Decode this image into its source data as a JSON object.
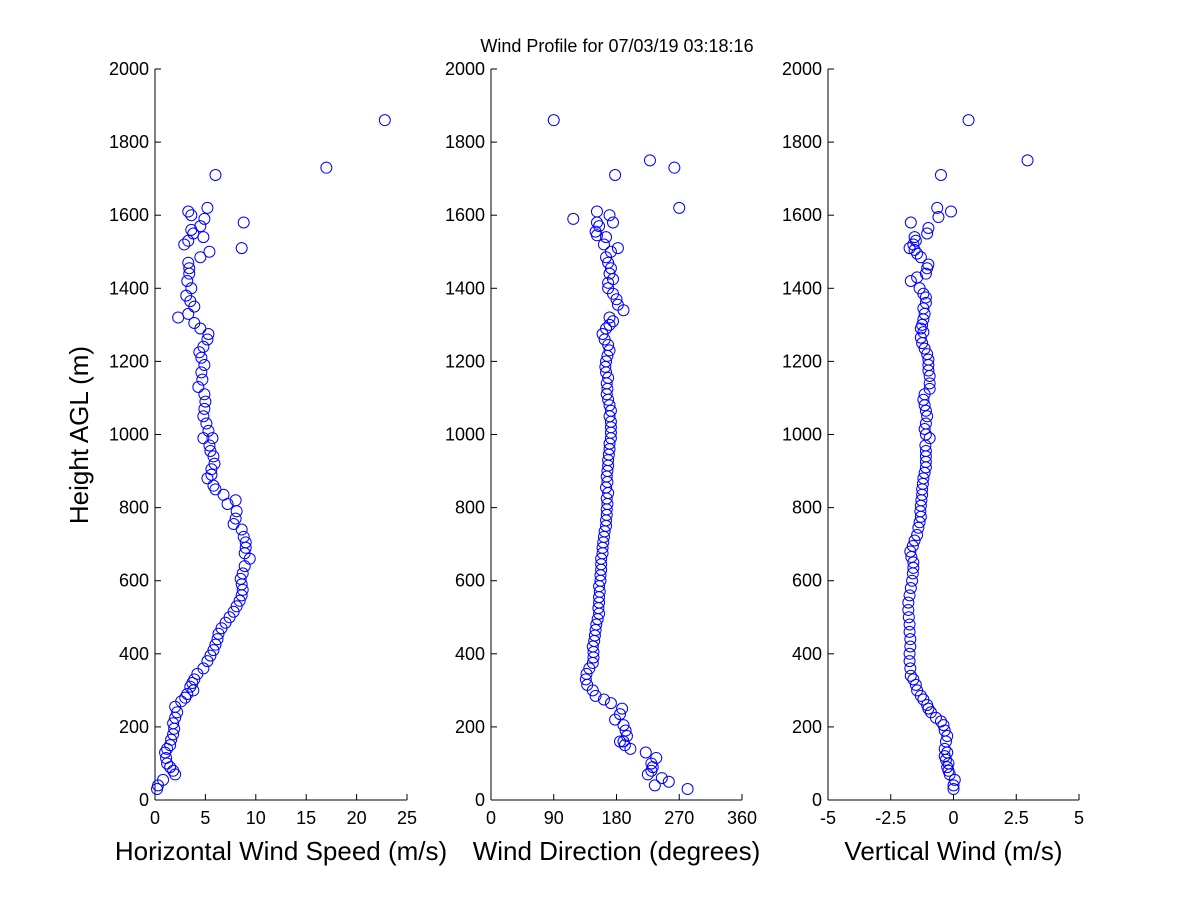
{
  "title": "Wind Profile for  07/03/19 03:18:16",
  "ylabel": "Height AGL (m)",
  "colors": {
    "marker": "#0000ff",
    "axis": "#000000",
    "background": "#ffffff"
  },
  "yticks": [
    "0",
    "200",
    "400",
    "600",
    "800",
    "1000",
    "1200",
    "1400",
    "1600",
    "1800",
    "2000"
  ],
  "chart_data": [
    {
      "type": "scatter",
      "xlabel": "Horizontal Wind Speed (m/s)",
      "ylabel": "Height AGL (m)",
      "xlim": [
        0,
        25
      ],
      "ylim": [
        0,
        2000
      ],
      "xticks": [
        "0",
        "5",
        "10",
        "15",
        "20",
        "25"
      ],
      "grid": false,
      "points": [
        [
          0.2,
          30
        ],
        [
          0.3,
          40
        ],
        [
          0.8,
          55
        ],
        [
          2.0,
          70
        ],
        [
          1.8,
          80
        ],
        [
          1.5,
          90
        ],
        [
          1.2,
          100
        ],
        [
          1.1,
          115
        ],
        [
          1.0,
          130
        ],
        [
          1.2,
          140
        ],
        [
          1.5,
          150
        ],
        [
          1.6,
          165
        ],
        [
          1.8,
          180
        ],
        [
          1.9,
          195
        ],
        [
          1.8,
          210
        ],
        [
          2.0,
          225
        ],
        [
          2.2,
          240
        ],
        [
          2.0,
          255
        ],
        [
          2.6,
          270
        ],
        [
          3.0,
          280
        ],
        [
          3.2,
          290
        ],
        [
          3.8,
          300
        ],
        [
          3.5,
          310
        ],
        [
          3.7,
          320
        ],
        [
          3.9,
          330
        ],
        [
          4.2,
          345
        ],
        [
          4.8,
          360
        ],
        [
          5.2,
          380
        ],
        [
          5.5,
          395
        ],
        [
          5.8,
          410
        ],
        [
          6.0,
          425
        ],
        [
          6.2,
          440
        ],
        [
          6.3,
          455
        ],
        [
          6.6,
          470
        ],
        [
          7.0,
          485
        ],
        [
          7.4,
          500
        ],
        [
          7.8,
          515
        ],
        [
          8.1,
          530
        ],
        [
          8.4,
          545
        ],
        [
          8.6,
          560
        ],
        [
          8.7,
          575
        ],
        [
          8.6,
          590
        ],
        [
          8.5,
          605
        ],
        [
          8.7,
          620
        ],
        [
          8.9,
          640
        ],
        [
          9.4,
          660
        ],
        [
          8.9,
          675
        ],
        [
          9.0,
          690
        ],
        [
          9.0,
          705
        ],
        [
          8.8,
          720
        ],
        [
          8.6,
          740
        ],
        [
          7.8,
          755
        ],
        [
          8.0,
          770
        ],
        [
          8.1,
          790
        ],
        [
          7.2,
          810
        ],
        [
          8.0,
          820
        ],
        [
          6.8,
          835
        ],
        [
          6.0,
          850
        ],
        [
          5.8,
          860
        ],
        [
          5.2,
          880
        ],
        [
          5.6,
          890
        ],
        [
          5.6,
          905
        ],
        [
          5.9,
          920
        ],
        [
          5.8,
          940
        ],
        [
          5.5,
          955
        ],
        [
          5.4,
          970
        ],
        [
          5.7,
          990
        ],
        [
          4.8,
          990
        ],
        [
          5.3,
          1010
        ],
        [
          5.1,
          1030
        ],
        [
          4.8,
          1050
        ],
        [
          4.9,
          1070
        ],
        [
          5.0,
          1090
        ],
        [
          4.9,
          1110
        ],
        [
          4.3,
          1130
        ],
        [
          4.7,
          1150
        ],
        [
          4.6,
          1170
        ],
        [
          4.9,
          1190
        ],
        [
          4.6,
          1210
        ],
        [
          4.4,
          1225
        ],
        [
          4.8,
          1240
        ],
        [
          5.2,
          1260
        ],
        [
          5.3,
          1275
        ],
        [
          4.5,
          1290
        ],
        [
          3.9,
          1305
        ],
        [
          2.3,
          1320
        ],
        [
          3.3,
          1330
        ],
        [
          3.9,
          1350
        ],
        [
          3.5,
          1365
        ],
        [
          3.1,
          1380
        ],
        [
          3.6,
          1400
        ],
        [
          3.2,
          1420
        ],
        [
          3.4,
          1440
        ],
        [
          3.4,
          1455
        ],
        [
          3.3,
          1470
        ],
        [
          4.5,
          1485
        ],
        [
          5.4,
          1500
        ],
        [
          8.6,
          1510
        ],
        [
          2.9,
          1520
        ],
        [
          3.3,
          1530
        ],
        [
          4.8,
          1540
        ],
        [
          3.8,
          1550
        ],
        [
          3.6,
          1560
        ],
        [
          4.5,
          1570
        ],
        [
          8.8,
          1580
        ],
        [
          4.9,
          1590
        ],
        [
          3.6,
          1600
        ],
        [
          3.3,
          1610
        ],
        [
          5.2,
          1620
        ],
        [
          6.0,
          1710
        ],
        [
          17.0,
          1730
        ],
        [
          22.8,
          1860
        ]
      ]
    },
    {
      "type": "scatter",
      "xlabel": "Wind Direction (degrees)",
      "ylabel": "",
      "xlim": [
        0,
        360
      ],
      "ylim": [
        0,
        2000
      ],
      "xticks": [
        "0",
        "90",
        "180",
        "270",
        "360"
      ],
      "grid": false,
      "points": [
        [
          282,
          30
        ],
        [
          235,
          40
        ],
        [
          255,
          50
        ],
        [
          245,
          60
        ],
        [
          225,
          70
        ],
        [
          230,
          80
        ],
        [
          232,
          90
        ],
        [
          230,
          100
        ],
        [
          237,
          115
        ],
        [
          222,
          130
        ],
        [
          200,
          140
        ],
        [
          192,
          150
        ],
        [
          190,
          160
        ],
        [
          185,
          160
        ],
        [
          195,
          175
        ],
        [
          193,
          190
        ],
        [
          190,
          205
        ],
        [
          178,
          220
        ],
        [
          185,
          235
        ],
        [
          188,
          250
        ],
        [
          172,
          265
        ],
        [
          162,
          275
        ],
        [
          150,
          285
        ],
        [
          146,
          300
        ],
        [
          138,
          315
        ],
        [
          136,
          330
        ],
        [
          137,
          345
        ],
        [
          141,
          360
        ],
        [
          146,
          375
        ],
        [
          147,
          390
        ],
        [
          147,
          405
        ],
        [
          146,
          420
        ],
        [
          148,
          435
        ],
        [
          149,
          450
        ],
        [
          150,
          465
        ],
        [
          151,
          480
        ],
        [
          153,
          495
        ],
        [
          155,
          510
        ],
        [
          154,
          525
        ],
        [
          155,
          540
        ],
        [
          155,
          555
        ],
        [
          156,
          570
        ],
        [
          155,
          585
        ],
        [
          157,
          600
        ],
        [
          157,
          615
        ],
        [
          158,
          630
        ],
        [
          158,
          645
        ],
        [
          158,
          660
        ],
        [
          160,
          675
        ],
        [
          160,
          690
        ],
        [
          161,
          705
        ],
        [
          162,
          720
        ],
        [
          163,
          735
        ],
        [
          165,
          750
        ],
        [
          165,
          765
        ],
        [
          166,
          780
        ],
        [
          166,
          795
        ],
        [
          167,
          810
        ],
        [
          166,
          825
        ],
        [
          168,
          840
        ],
        [
          165,
          855
        ],
        [
          167,
          870
        ],
        [
          166,
          885
        ],
        [
          167,
          900
        ],
        [
          168,
          915
        ],
        [
          168,
          930
        ],
        [
          169,
          945
        ],
        [
          170,
          960
        ],
        [
          170,
          975
        ],
        [
          172,
          990
        ],
        [
          172,
          1005
        ],
        [
          172,
          1020
        ],
        [
          172,
          1035
        ],
        [
          170,
          1050
        ],
        [
          172,
          1065
        ],
        [
          170,
          1080
        ],
        [
          168,
          1095
        ],
        [
          166,
          1110
        ],
        [
          167,
          1125
        ],
        [
          166,
          1140
        ],
        [
          168,
          1155
        ],
        [
          165,
          1170
        ],
        [
          164,
          1185
        ],
        [
          165,
          1200
        ],
        [
          167,
          1215
        ],
        [
          170,
          1230
        ],
        [
          168,
          1245
        ],
        [
          163,
          1260
        ],
        [
          160,
          1275
        ],
        [
          165,
          1290
        ],
        [
          170,
          1300
        ],
        [
          175,
          1310
        ],
        [
          170,
          1320
        ],
        [
          190,
          1340
        ],
        [
          182,
          1355
        ],
        [
          180,
          1370
        ],
        [
          175,
          1385
        ],
        [
          168,
          1400
        ],
        [
          168,
          1415
        ],
        [
          175,
          1425
        ],
        [
          170,
          1440
        ],
        [
          172,
          1455
        ],
        [
          168,
          1470
        ],
        [
          165,
          1485
        ],
        [
          172,
          1500
        ],
        [
          182,
          1510
        ],
        [
          162,
          1520
        ],
        [
          165,
          1540
        ],
        [
          152,
          1545
        ],
        [
          150,
          1555
        ],
        [
          155,
          1570
        ],
        [
          152,
          1580
        ],
        [
          175,
          1580
        ],
        [
          118,
          1590
        ],
        [
          170,
          1600
        ],
        [
          152,
          1610
        ],
        [
          270,
          1620
        ],
        [
          178,
          1710
        ],
        [
          263,
          1730
        ],
        [
          228,
          1750
        ],
        [
          90,
          1860
        ]
      ]
    },
    {
      "type": "scatter",
      "xlabel": "Vertical Wind (m/s)",
      "ylabel": "",
      "xlim": [
        -5,
        5
      ],
      "ylim": [
        0,
        2000
      ],
      "xticks": [
        "-5",
        "-2.5",
        "0",
        "2.5",
        "5"
      ],
      "grid": false,
      "points": [
        [
          0.0,
          30
        ],
        [
          0.0,
          40
        ],
        [
          0.05,
          55
        ],
        [
          -0.15,
          70
        ],
        [
          -0.2,
          80
        ],
        [
          -0.25,
          90
        ],
        [
          -0.2,
          100
        ],
        [
          -0.3,
          110
        ],
        [
          -0.35,
          120
        ],
        [
          -0.25,
          130
        ],
        [
          -0.35,
          140
        ],
        [
          -0.3,
          160
        ],
        [
          -0.25,
          175
        ],
        [
          -0.35,
          190
        ],
        [
          -0.4,
          205
        ],
        [
          -0.5,
          215
        ],
        [
          -0.7,
          225
        ],
        [
          -0.9,
          240
        ],
        [
          -1.0,
          250
        ],
        [
          -1.05,
          260
        ],
        [
          -1.2,
          275
        ],
        [
          -1.3,
          285
        ],
        [
          -1.45,
          300
        ],
        [
          -1.5,
          315
        ],
        [
          -1.6,
          330
        ],
        [
          -1.7,
          340
        ],
        [
          -1.72,
          360
        ],
        [
          -1.75,
          380
        ],
        [
          -1.75,
          400
        ],
        [
          -1.72,
          420
        ],
        [
          -1.72,
          440
        ],
        [
          -1.75,
          460
        ],
        [
          -1.75,
          480
        ],
        [
          -1.78,
          500
        ],
        [
          -1.8,
          520
        ],
        [
          -1.8,
          540
        ],
        [
          -1.75,
          560
        ],
        [
          -1.7,
          580
        ],
        [
          -1.65,
          600
        ],
        [
          -1.62,
          620
        ],
        [
          -1.6,
          635
        ],
        [
          -1.6,
          650
        ],
        [
          -1.68,
          665
        ],
        [
          -1.72,
          680
        ],
        [
          -1.62,
          695
        ],
        [
          -1.55,
          710
        ],
        [
          -1.45,
          725
        ],
        [
          -1.4,
          745
        ],
        [
          -1.35,
          760
        ],
        [
          -1.3,
          775
        ],
        [
          -1.32,
          790
        ],
        [
          -1.3,
          805
        ],
        [
          -1.28,
          820
        ],
        [
          -1.25,
          835
        ],
        [
          -1.25,
          850
        ],
        [
          -1.22,
          865
        ],
        [
          -1.2,
          880
        ],
        [
          -1.15,
          895
        ],
        [
          -1.1,
          910
        ],
        [
          -1.1,
          925
        ],
        [
          -1.1,
          940
        ],
        [
          -1.1,
          955
        ],
        [
          -1.12,
          970
        ],
        [
          -0.95,
          990
        ],
        [
          -1.1,
          1000
        ],
        [
          -1.15,
          1015
        ],
        [
          -1.1,
          1030
        ],
        [
          -1.05,
          1050
        ],
        [
          -1.1,
          1065
        ],
        [
          -1.15,
          1080
        ],
        [
          -1.2,
          1095
        ],
        [
          -1.15,
          1110
        ],
        [
          -0.95,
          1125
        ],
        [
          -0.95,
          1140
        ],
        [
          -0.95,
          1160
        ],
        [
          -1.0,
          1175
        ],
        [
          -1.0,
          1190
        ],
        [
          -1.0,
          1205
        ],
        [
          -1.05,
          1220
        ],
        [
          -1.15,
          1235
        ],
        [
          -1.25,
          1250
        ],
        [
          -1.3,
          1265
        ],
        [
          -1.2,
          1280
        ],
        [
          -1.3,
          1290
        ],
        [
          -1.25,
          1300
        ],
        [
          -1.2,
          1315
        ],
        [
          -1.15,
          1330
        ],
        [
          -1.2,
          1345
        ],
        [
          -1.1,
          1360
        ],
        [
          -1.1,
          1375
        ],
        [
          -1.2,
          1385
        ],
        [
          -1.35,
          1400
        ],
        [
          -1.7,
          1420
        ],
        [
          -1.45,
          1430
        ],
        [
          -1.1,
          1440
        ],
        [
          -1.05,
          1455
        ],
        [
          -1.0,
          1465
        ],
        [
          -1.3,
          1485
        ],
        [
          -1.45,
          1495
        ],
        [
          -1.55,
          1505
        ],
        [
          -1.75,
          1510
        ],
        [
          -1.6,
          1520
        ],
        [
          -1.5,
          1530
        ],
        [
          -1.55,
          1540
        ],
        [
          -1.05,
          1550
        ],
        [
          -1.0,
          1565
        ],
        [
          -1.7,
          1580
        ],
        [
          -0.6,
          1595
        ],
        [
          -0.1,
          1610
        ],
        [
          -0.65,
          1620
        ],
        [
          -0.5,
          1710
        ],
        [
          2.95,
          1750
        ],
        [
          0.6,
          1860
        ]
      ]
    }
  ]
}
